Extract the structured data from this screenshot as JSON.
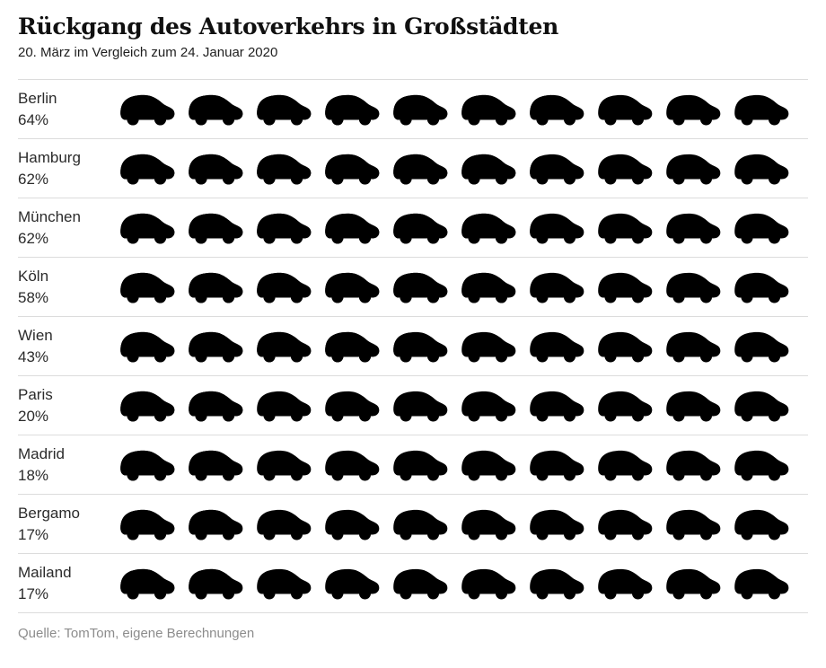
{
  "header": {
    "title": "Rückgang des Autoverkehrs in Großstädten",
    "subtitle": "20. März im Vergleich zum 24. Januar 2020"
  },
  "footer": {
    "source": "Quelle: TomTom, eigene Berechnungen"
  },
  "chart_data": {
    "type": "bar",
    "variant": "pictogram",
    "icon": "car-icon",
    "icons_per_row": 10,
    "unit_per_icon": 10,
    "unit": "%",
    "categories": [
      "Berlin",
      "Hamburg",
      "München",
      "Köln",
      "Wien",
      "Paris",
      "Madrid",
      "Bergamo",
      "Mailand"
    ],
    "values": [
      64,
      62,
      62,
      58,
      43,
      20,
      18,
      17,
      17
    ],
    "value_labels": [
      "64%",
      "62%",
      "62%",
      "58%",
      "43%",
      "20%",
      "18%",
      "17%",
      "17%"
    ],
    "title": "Rückgang des Autoverkehrs in Großstädten",
    "subtitle": "20. März im Vergleich zum 24. Januar 2020",
    "legend": "none",
    "grid": "row dividers only",
    "colors": {
      "filled": "#97161a",
      "empty": "#c9c9c9",
      "divider": "#dcdcdc",
      "text": "#2b2b2b",
      "source_text": "#8c8c8c"
    }
  }
}
